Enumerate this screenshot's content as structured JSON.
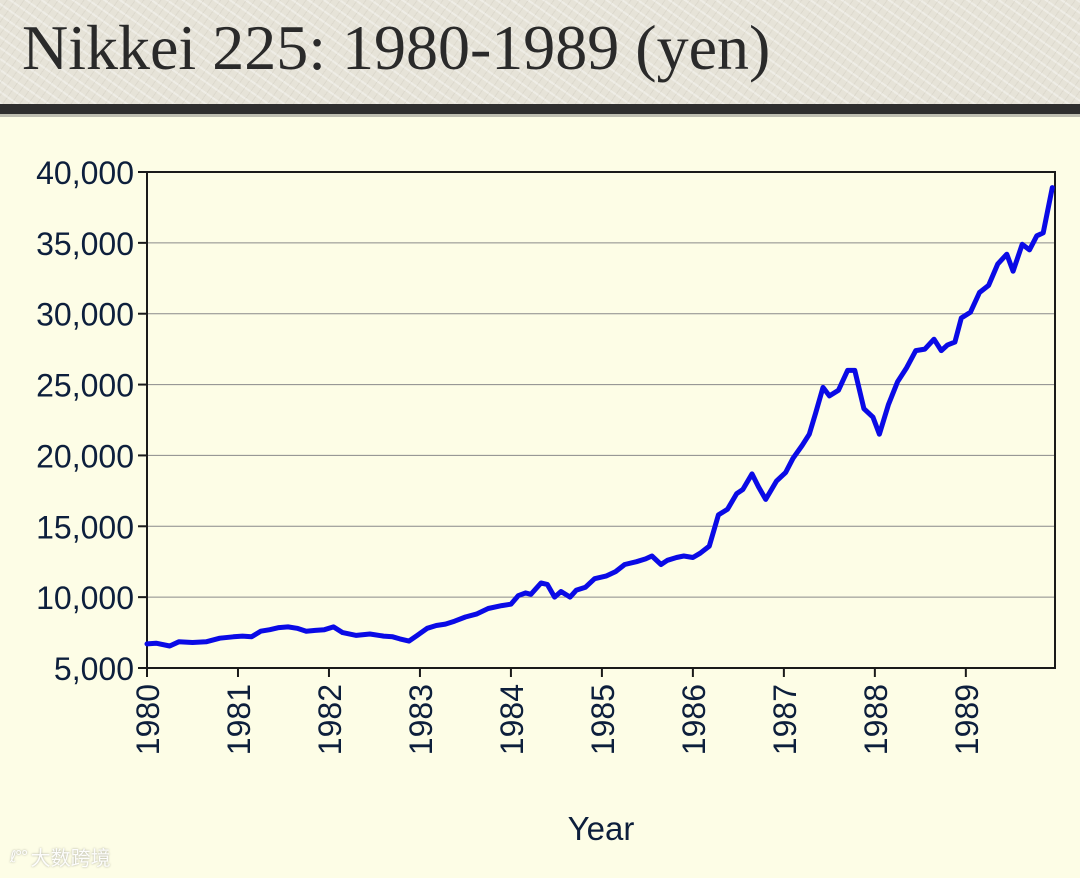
{
  "slide": {
    "title": "Nikkei 225: 1980-1989 (yen)"
  },
  "watermark": {
    "logo": "ℓ°°",
    "text": "大数跨境"
  },
  "chart_data": {
    "type": "line",
    "xlabel": "Year",
    "ylabel": "",
    "xlim": [
      1980,
      1989.98
    ],
    "ylim": [
      5000,
      40000
    ],
    "yticks": [
      5000,
      10000,
      15000,
      20000,
      25000,
      30000,
      35000,
      40000
    ],
    "ytick_labels": [
      "5,000",
      "10,000",
      "15,000",
      "20,000",
      "25,000",
      "30,000",
      "35,000",
      "40,000"
    ],
    "xticks": [
      1980,
      1981,
      1982,
      1983,
      1984,
      1985,
      1986,
      1987,
      1988,
      1989
    ],
    "xtick_labels": [
      "1980",
      "1981",
      "1982",
      "1983",
      "1984",
      "1985",
      "1986",
      "1987",
      "1988",
      "1989"
    ],
    "grid": "horizontal",
    "line_color": "#0a0ae6",
    "series": [
      {
        "x": [
          1980.0,
          1980.1,
          1980.25,
          1980.35,
          1980.5,
          1980.65,
          1980.8,
          1980.95,
          1981.05,
          1981.15,
          1981.25,
          1981.35,
          1981.45,
          1981.55,
          1981.65,
          1981.75,
          1981.85,
          1981.95,
          1982.05,
          1982.15,
          1982.3,
          1982.45,
          1982.6,
          1982.7,
          1982.78,
          1982.88,
          1982.97,
          1983.08,
          1983.18,
          1983.28,
          1983.38,
          1983.5,
          1983.62,
          1983.75,
          1983.9,
          1984.0,
          1984.08,
          1984.16,
          1984.22,
          1984.33,
          1984.4,
          1984.48,
          1984.55,
          1984.65,
          1984.72,
          1984.82,
          1984.92,
          1985.05,
          1985.15,
          1985.25,
          1985.38,
          1985.48,
          1985.55,
          1985.65,
          1985.72,
          1985.82,
          1985.9,
          1986.0,
          1986.08,
          1986.18,
          1986.28,
          1986.38,
          1986.48,
          1986.55,
          1986.65,
          1986.72,
          1986.8,
          1986.92,
          1987.02,
          1987.1,
          1987.2,
          1987.28,
          1987.35,
          1987.43,
          1987.5,
          1987.6,
          1987.7,
          1987.78,
          1987.88,
          1987.98,
          1988.05,
          1988.15,
          1988.25,
          1988.35,
          1988.45,
          1988.55,
          1988.65,
          1988.73,
          1988.8,
          1988.88,
          1988.95,
          1989.05,
          1989.15,
          1989.25,
          1989.35,
          1989.45,
          1989.52,
          1989.62,
          1989.7,
          1989.78,
          1989.85,
          1989.95
        ],
        "y": [
          6700,
          6750,
          6550,
          6850,
          6800,
          6850,
          7100,
          7200,
          7250,
          7200,
          7600,
          7700,
          7850,
          7900,
          7800,
          7600,
          7650,
          7700,
          7900,
          7500,
          7300,
          7400,
          7250,
          7200,
          7050,
          6900,
          7300,
          7800,
          8000,
          8100,
          8300,
          8600,
          8800,
          9200,
          9400,
          9500,
          10100,
          10300,
          10200,
          11000,
          10900,
          10000,
          10400,
          10000,
          10500,
          10700,
          11300,
          11500,
          11800,
          12300,
          12500,
          12700,
          12900,
          12300,
          12600,
          12800,
          12900,
          12800,
          13100,
          13600,
          15800,
          16200,
          17300,
          17600,
          18700,
          17800,
          16900,
          18200,
          18800,
          19800,
          20700,
          21500,
          23000,
          24800,
          24200,
          24600,
          26000,
          26000,
          23300,
          22700,
          21500,
          23600,
          25200,
          26200,
          27400,
          27500,
          28200,
          27400,
          27800,
          28000,
          29700,
          30100,
          31500,
          32000,
          33500,
          34200,
          33000,
          34900,
          34500,
          35500,
          35700,
          38900
        ]
      }
    ]
  }
}
